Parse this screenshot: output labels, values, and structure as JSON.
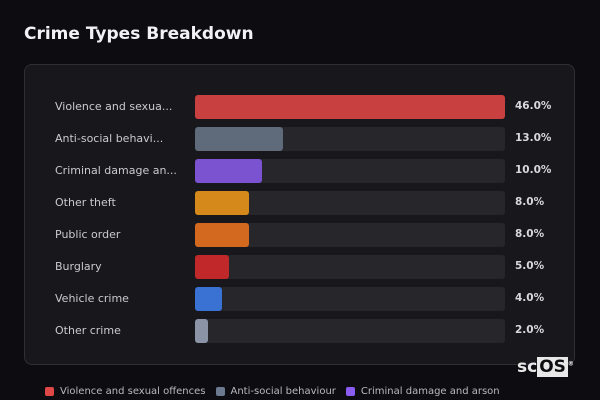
{
  "header": {
    "title": "Crime Types Breakdown"
  },
  "chart_data": {
    "type": "bar",
    "orientation": "horizontal",
    "title": "Crime Types Breakdown",
    "categories": [
      "Violence and sexua...",
      "Anti-social behavi...",
      "Criminal damage an...",
      "Other theft",
      "Public order",
      "Burglary",
      "Vehicle crime",
      "Other crime"
    ],
    "values": [
      46.0,
      13.0,
      10.0,
      8.0,
      8.0,
      5.0,
      4.0,
      2.0
    ],
    "value_labels": [
      "46.0%",
      "13.0%",
      "10.0%",
      "8.0%",
      "8.0%",
      "5.0%",
      "4.0%",
      "2.0%"
    ],
    "unit": "%",
    "xlim": [
      0,
      46
    ],
    "colors": [
      "#c94040",
      "#5f6b7a",
      "#7b52d0",
      "#d4891a",
      "#d2691e",
      "#c0282a",
      "#3a72d4",
      "#8a94a6"
    ],
    "grid": false,
    "legend_position": "bottom",
    "legend": [
      {
        "label": "Violence and sexual offences",
        "color": "#e04848"
      },
      {
        "label": "Anti-social behaviour",
        "color": "#6b7a8f"
      },
      {
        "label": "Criminal damage and arson",
        "color": "#8a5cf0"
      }
    ]
  },
  "logo": {
    "text_a": "sc",
    "text_b": "OS",
    "mark": "®"
  }
}
